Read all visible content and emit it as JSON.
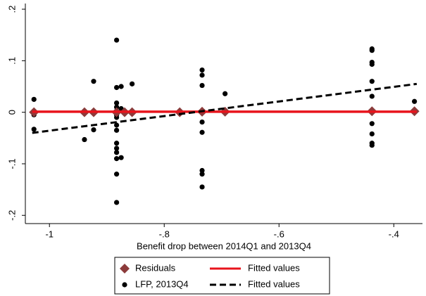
{
  "chart_data": {
    "type": "scatter",
    "x_label": "Benefit drop between 2014Q1 and 2013Q4",
    "xlim": [
      -1.042,
      -0.35
    ],
    "ylim": [
      -0.216,
      0.211
    ],
    "xticks": [
      -1,
      {
        "value": -0.8,
        "label": "-.8"
      },
      {
        "value": -0.6,
        "label": "-.6"
      },
      {
        "value": -0.4,
        "label": "-.4"
      }
    ],
    "yticks": [
      {
        "value": -0.2,
        "label": "-.2"
      },
      {
        "value": -0.1,
        "label": "-.1"
      },
      0,
      {
        "value": 0.1,
        "label": ".1"
      },
      {
        "value": 0.2,
        "label": ".2"
      }
    ],
    "series": [
      {
        "name": "Residuals",
        "color": "#8c3b3b",
        "marker": "diamond",
        "x": [
          -1.027,
          -0.939,
          -0.923,
          -0.883,
          -0.869,
          -0.856,
          -0.773,
          -0.734,
          -0.694,
          -0.438,
          -0.364
        ],
        "values": [
          0,
          0,
          0,
          0,
          0,
          0,
          0,
          0.001,
          0.001,
          0.002,
          0.002
        ]
      },
      {
        "name": "Fitted values",
        "color": "#e8141c",
        "marker": "line",
        "dash": false,
        "x": [
          -1.03,
          -0.36
        ],
        "values": [
          0.001,
          0.001
        ]
      },
      {
        "name": "LFP, 2013Q4",
        "color": "#000000",
        "marker": "circle",
        "x": [
          -1.027,
          -1.027,
          -1.027,
          -0.939,
          -0.923,
          -0.923,
          -0.883,
          -0.883,
          -0.883,
          -0.883,
          -0.883,
          -0.883,
          -0.883,
          -0.883,
          -0.883,
          -0.883,
          -0.883,
          -0.883,
          -0.883,
          -0.883,
          -0.883,
          -0.875,
          -0.875,
          -0.875,
          -0.856,
          -0.773,
          -0.734,
          -0.734,
          -0.734,
          -0.734,
          -0.734,
          -0.734,
          -0.734,
          -0.734,
          -0.734,
          -0.694,
          -0.438,
          -0.438,
          -0.438,
          -0.438,
          -0.438,
          -0.438,
          -0.438,
          -0.438,
          -0.438,
          -0.438,
          -0.364
        ],
        "values": [
          0.025,
          -0.005,
          -0.033,
          -0.053,
          0.06,
          -0.034,
          0.14,
          0.048,
          0.018,
          0.01,
          0.0,
          -0.005,
          -0.01,
          -0.025,
          -0.035,
          -0.06,
          -0.07,
          -0.078,
          -0.09,
          -0.12,
          -0.175,
          0.05,
          0.007,
          -0.088,
          0.055,
          0.0,
          0.082,
          0.072,
          0.052,
          0.0,
          -0.019,
          -0.039,
          -0.113,
          -0.12,
          -0.145,
          0.036,
          0.123,
          0.12,
          0.097,
          0.093,
          0.06,
          0.031,
          -0.022,
          -0.042,
          -0.06,
          -0.064,
          0.021
        ]
      },
      {
        "name": "Fitted values",
        "color": "#000000",
        "marker": "line",
        "dash": true,
        "x": [
          -1.03,
          -0.36
        ],
        "values": [
          -0.04,
          0.055
        ]
      }
    ]
  }
}
